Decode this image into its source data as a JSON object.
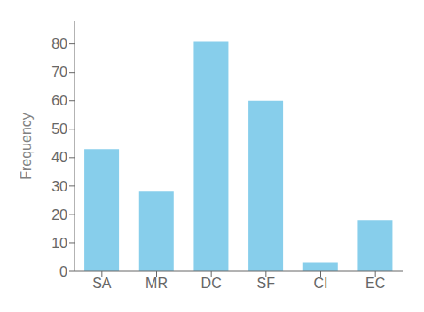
{
  "chart_data": {
    "type": "bar",
    "categories": [
      "SA",
      "MR",
      "DC",
      "SF",
      "CI",
      "EC"
    ],
    "values": [
      43,
      28,
      81,
      60,
      3,
      18
    ],
    "color": "#87CEEB",
    "ylabel": "Frequency",
    "ylim": [
      0,
      88
    ],
    "yticks": [
      0,
      10,
      20,
      30,
      40,
      50,
      60,
      70,
      80
    ],
    "grid": false
  }
}
